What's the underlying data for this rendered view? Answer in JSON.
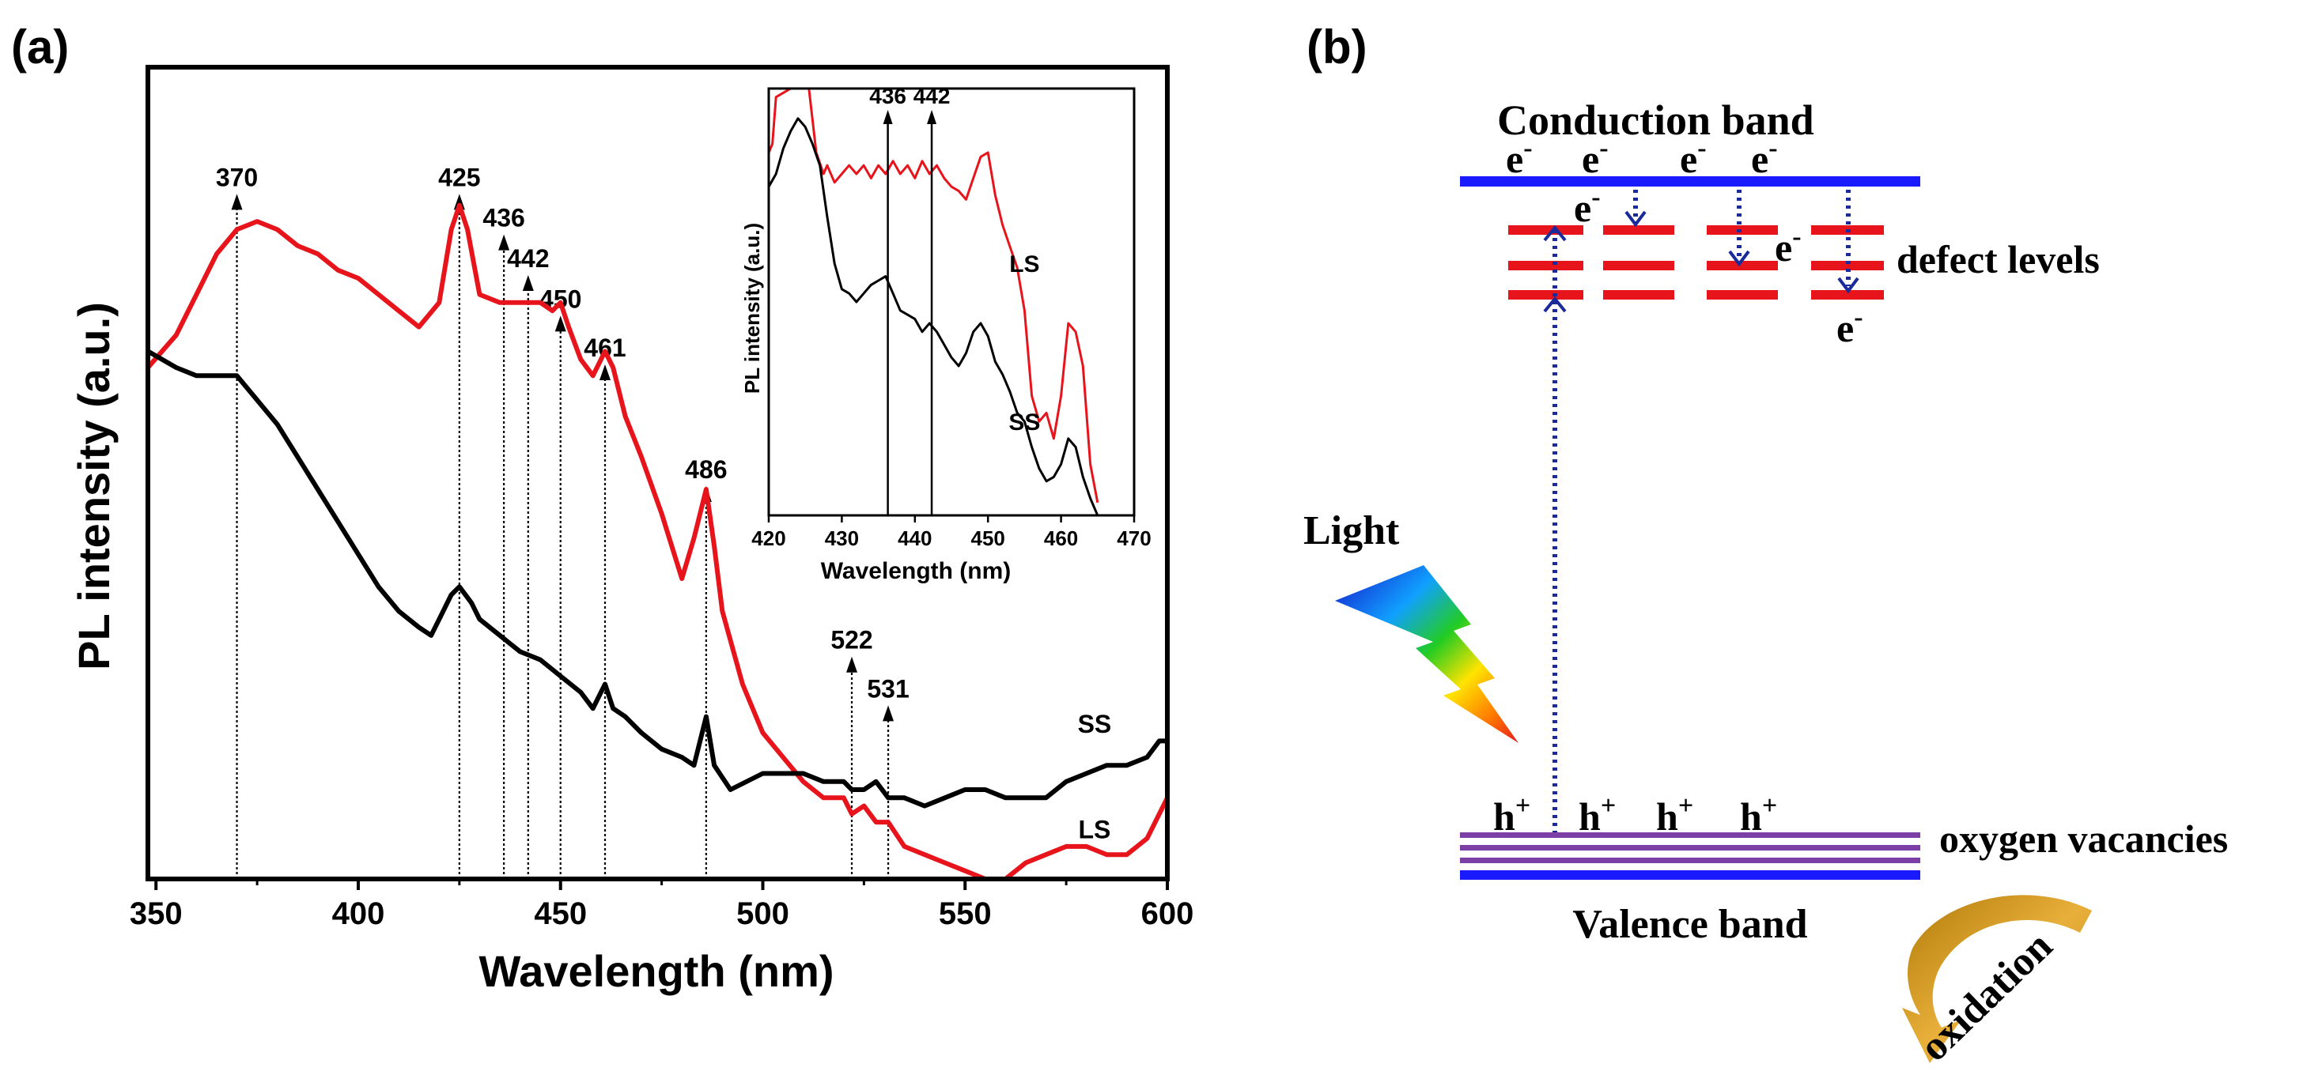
{
  "panel_a": {
    "label": "(a)",
    "chart_data": {
      "type": "line",
      "xlabel": "Wavelength (nm)",
      "ylabel": "PL intensity (a.u.)",
      "xlim": [
        348,
        600
      ],
      "ylim": [
        0,
        100
      ],
      "xticks": [
        350,
        400,
        450,
        500,
        550,
        600
      ],
      "yticks_shown": false,
      "series": [
        {
          "name": "LS",
          "color": "#e8141c",
          "x": [
            348,
            355,
            360,
            365,
            370,
            375,
            380,
            385,
            390,
            395,
            400,
            405,
            410,
            415,
            420,
            423,
            425,
            427,
            430,
            435,
            440,
            445,
            448,
            450,
            452,
            455,
            458,
            461,
            463,
            466,
            470,
            475,
            480,
            483,
            486,
            488,
            490,
            495,
            500,
            505,
            510,
            515,
            520,
            522,
            525,
            528,
            531,
            535,
            540,
            545,
            550,
            555,
            560,
            565,
            570,
            575,
            580,
            585,
            590,
            595,
            600
          ],
          "y": [
            63,
            67,
            72,
            77,
            80,
            81,
            80,
            78,
            77,
            75,
            74,
            72,
            70,
            68,
            71,
            80,
            83,
            80,
            72,
            71,
            71,
            71,
            70,
            71,
            68,
            64,
            62,
            65,
            63,
            57,
            52,
            45,
            37,
            42,
            48,
            41,
            33,
            24,
            18,
            15,
            12,
            10,
            10,
            8,
            9,
            7,
            7,
            4,
            3,
            2,
            1,
            0,
            0,
            2,
            3,
            4,
            4,
            3,
            3,
            5,
            10
          ]
        },
        {
          "name": "SS",
          "color": "#000000",
          "x": [
            348,
            355,
            360,
            365,
            370,
            375,
            380,
            385,
            390,
            395,
            400,
            405,
            410,
            415,
            418,
            420,
            423,
            425,
            428,
            430,
            435,
            440,
            445,
            450,
            455,
            458,
            461,
            463,
            466,
            470,
            475,
            480,
            483,
            486,
            488,
            492,
            500,
            505,
            510,
            515,
            520,
            522,
            525,
            528,
            531,
            535,
            540,
            545,
            550,
            555,
            560,
            565,
            570,
            575,
            580,
            585,
            590,
            595,
            598,
            600
          ],
          "y": [
            65,
            63,
            62,
            62,
            62,
            59,
            56,
            52,
            48,
            44,
            40,
            36,
            33,
            31,
            30,
            32,
            35,
            36,
            34,
            32,
            30,
            28,
            27,
            25,
            23,
            21,
            24,
            21,
            20,
            18,
            16,
            15,
            14,
            20,
            14,
            11,
            13,
            13,
            13,
            12,
            12,
            11,
            11,
            12,
            10,
            10,
            9,
            10,
            11,
            11,
            10,
            10,
            10,
            12,
            13,
            14,
            14,
            15,
            17,
            17
          ]
        }
      ],
      "series_labels": [
        {
          "text": "SS",
          "near_x": 582,
          "near_y": 18
        },
        {
          "text": "LS",
          "near_x": 582,
          "near_y": 5
        }
      ],
      "peak_markers": [
        {
          "label": "370",
          "x": 370,
          "arrow_top": 84
        },
        {
          "label": "425",
          "x": 425,
          "arrow_top": 84
        },
        {
          "label": "436",
          "x": 436,
          "arrow_top": 79
        },
        {
          "label": "442",
          "x": 442,
          "arrow_top": 74
        },
        {
          "label": "450",
          "x": 450,
          "arrow_top": 69
        },
        {
          "label": "461",
          "x": 461,
          "arrow_top": 63
        },
        {
          "label": "486",
          "x": 486,
          "arrow_top": 48
        },
        {
          "label": "522",
          "x": 522,
          "arrow_top": 27
        },
        {
          "label": "531",
          "x": 531,
          "arrow_top": 21
        }
      ],
      "inset": {
        "type": "line",
        "xlabel": "Wavelength (nm)",
        "ylabel": "PL intensity (a.u.)",
        "xlim": [
          420,
          470
        ],
        "ylim": [
          0,
          100
        ],
        "xticks": [
          420,
          430,
          440,
          450,
          460,
          470
        ],
        "series": [
          {
            "name": "LS",
            "color": "#e8141c",
            "x": [
              420,
              420.5,
              421,
              425,
              425.5,
              426.5,
              427.5,
              428,
              429,
              430,
              431,
              432,
              433,
              434,
              435,
              436,
              437,
              438,
              439,
              440,
              441,
              442,
              443,
              444,
              445,
              446,
              447,
              448,
              449,
              450,
              451,
              452,
              453,
              454,
              455,
              456,
              457,
              458,
              459,
              460,
              461,
              462,
              463,
              464,
              465
            ],
            "y": [
              85,
              87,
              98,
              102,
              100,
              85,
              80,
              82,
              78,
              80,
              82,
              80,
              82,
              79,
              82,
              80,
              83,
              80,
              82,
              79,
              83,
              80,
              82,
              79,
              77,
              76,
              74,
              79,
              84,
              85,
              75,
              68,
              63,
              58,
              48,
              28,
              22,
              24,
              18,
              28,
              45,
              43,
              35,
              12,
              3
            ]
          },
          {
            "name": "SS",
            "color": "#000000",
            "x": [
              420,
              421,
              422,
              423,
              424,
              425,
              426,
              427,
              428,
              429,
              430,
              431,
              432,
              433,
              434,
              435,
              436,
              437,
              438,
              439,
              440,
              441,
              442,
              443,
              444,
              445,
              446,
              447,
              448,
              449,
              450,
              451,
              452,
              453,
              454,
              455,
              456,
              457,
              458,
              459,
              460,
              461,
              462,
              463,
              464,
              465
            ],
            "y": [
              77,
              80,
              86,
              90,
              93,
              91,
              87,
              82,
              70,
              59,
              53,
              52,
              50,
              52,
              54,
              55,
              56,
              52,
              48,
              47,
              46,
              43,
              45,
              43,
              40,
              37,
              35,
              38,
              43,
              45,
              42,
              36,
              33,
              29,
              24,
              22,
              16,
              11,
              8,
              9,
              12,
              18,
              16,
              9,
              4,
              0
            ]
          }
        ],
        "series_labels": [
          {
            "text": "LS",
            "near_x": 455,
            "near_y": 57
          },
          {
            "text": "SS",
            "near_x": 455,
            "near_y": 20
          }
        ],
        "markers": [
          {
            "label": "436",
            "x": 436.3,
            "top": 95
          },
          {
            "label": "442",
            "x": 442.3,
            "top": 95
          }
        ]
      }
    }
  },
  "panel_b": {
    "label": "(b)",
    "conduction_band": "Conduction band",
    "valence_band": "Valence band",
    "defect_levels": "defect levels",
    "oxygen_vacancies": "oxygen vacancies",
    "light": "Light",
    "oxidation": "oxidation",
    "electron_symbol": "e",
    "electron_sup": "-",
    "hole_symbol": "h",
    "hole_sup": "+",
    "colors": {
      "band_blue": "#1a1aff",
      "defect_red": "#e8141c",
      "vacancy_purple": "#7b3fa6",
      "arrow_blue": "#1a2a9a",
      "oxidation_gold": "#c89014"
    }
  }
}
